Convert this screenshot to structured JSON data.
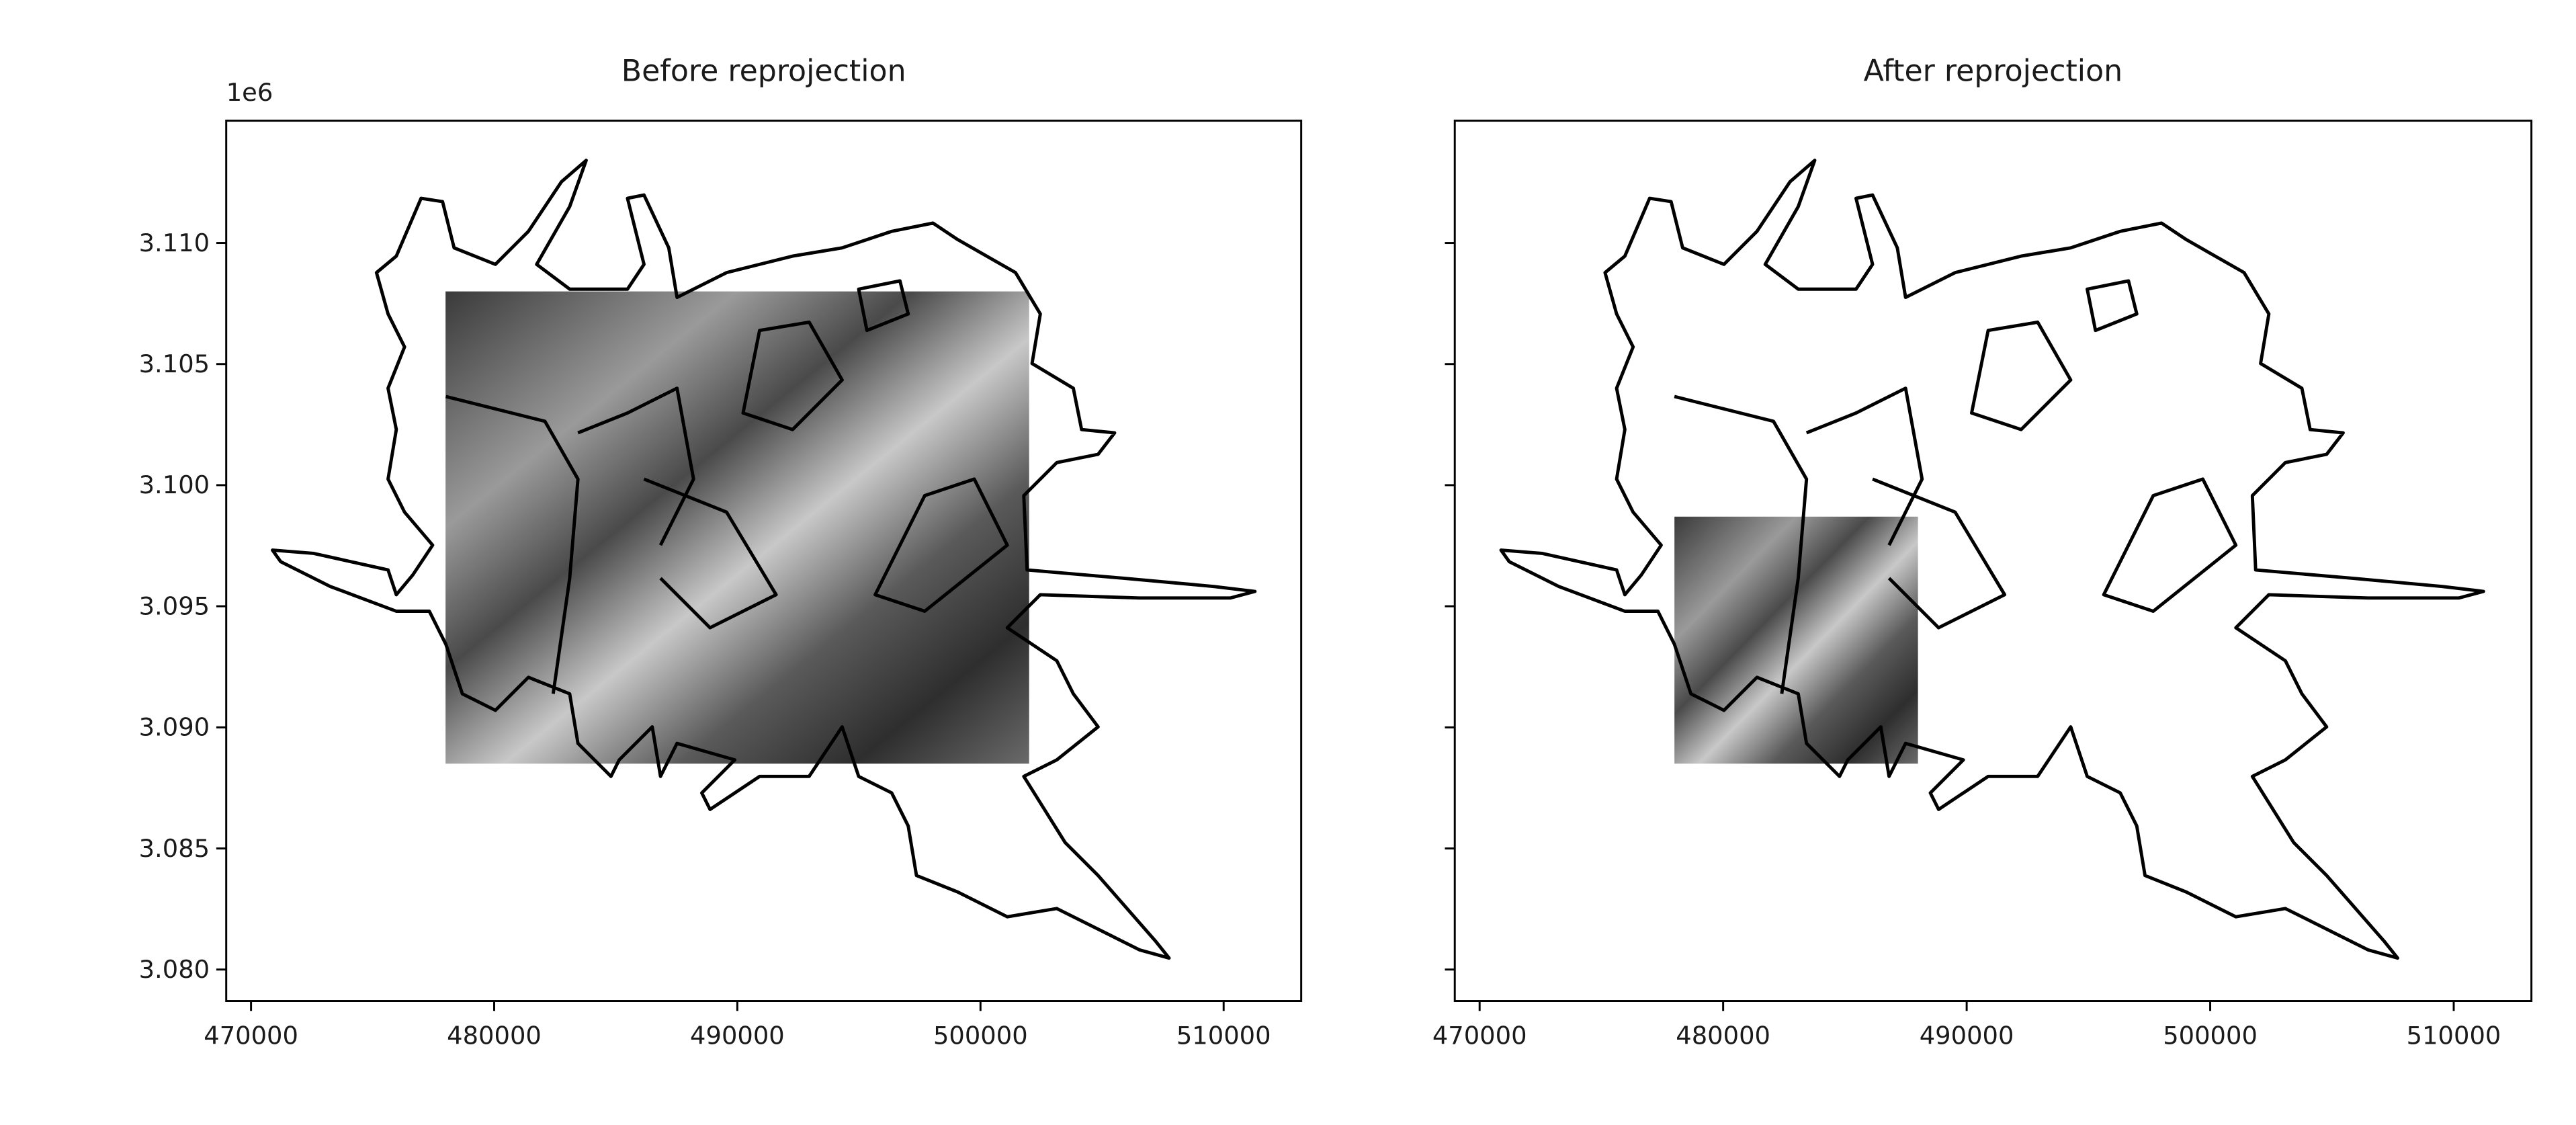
{
  "chart_data": [
    {
      "type": "image",
      "title": "Before reprojection",
      "offset_label": "1e6",
      "xlim": [
        468980,
        513190
      ],
      "ylim": [
        3078700,
        3115050
      ],
      "xticks": [
        470000,
        480000,
        490000,
        500000,
        510000
      ],
      "yticks": [
        {
          "value": 3080000,
          "label": "3.080"
        },
        {
          "value": 3085000,
          "label": "3.085"
        },
        {
          "value": 3090000,
          "label": "3.090"
        },
        {
          "value": 3095000,
          "label": "3.095"
        },
        {
          "value": 3100000,
          "label": "3.100"
        },
        {
          "value": 3105000,
          "label": "3.105"
        },
        {
          "value": 3110000,
          "label": "3.110"
        }
      ],
      "image_extent": {
        "x": [
          478000,
          502000
        ],
        "y": [
          3088500,
          3108000
        ]
      }
    },
    {
      "type": "image",
      "title": "After reprojection",
      "xlim": [
        468980,
        513190
      ],
      "ylim": [
        3078700,
        3115050
      ],
      "xticks": [
        470000,
        480000,
        490000,
        500000,
        510000
      ],
      "yticks": [
        3080000,
        3085000,
        3090000,
        3095000,
        3100000,
        3105000,
        3110000
      ],
      "image_extent": {
        "x": [
          478000,
          488000
        ],
        "y": [
          3088500,
          3098700
        ]
      }
    }
  ]
}
